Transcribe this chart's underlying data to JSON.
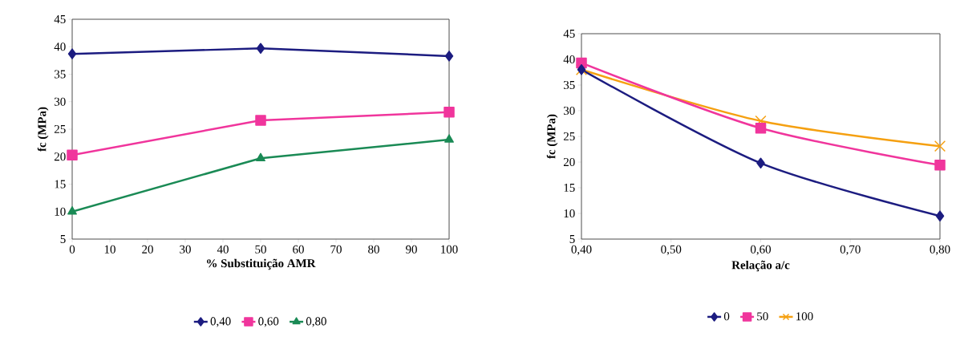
{
  "chart_data": [
    {
      "type": "line",
      "xlabel": "% Substituição AMR",
      "ylabel": "fc (MPa)",
      "x": [
        0,
        50,
        100
      ],
      "xlim": [
        0,
        100
      ],
      "xticks": [
        0,
        10,
        20,
        30,
        40,
        50,
        60,
        70,
        80,
        90,
        100
      ],
      "ylim": [
        5,
        45
      ],
      "yticks": [
        5,
        10,
        15,
        20,
        25,
        30,
        35,
        40,
        45
      ],
      "legend": "bottom",
      "grid": false,
      "series": [
        {
          "name": "0,40",
          "color": "#1c1c80",
          "marker": "diamond",
          "values": [
            38.7,
            39.7,
            38.3
          ]
        },
        {
          "name": "0,60",
          "color": "#f0359c",
          "marker": "square",
          "values": [
            20.3,
            26.6,
            28.1
          ]
        },
        {
          "name": "0,80",
          "color": "#1a8a55",
          "marker": "triangle",
          "values": [
            10,
            19.7,
            23.1
          ]
        }
      ]
    },
    {
      "type": "line",
      "xlabel": "Relação a/c",
      "ylabel": "fc (MPa)",
      "x": [
        0.4,
        0.6,
        0.8
      ],
      "xlim": [
        0.4,
        0.8
      ],
      "xticks": [
        {
          "value": 0.4,
          "label": "0,40"
        },
        {
          "value": 0.5,
          "label": "0,50"
        },
        {
          "value": 0.6,
          "label": "0,60"
        },
        {
          "value": 0.7,
          "label": "0,70"
        },
        {
          "value": 0.8,
          "label": "0,80"
        }
      ],
      "ylim": [
        5,
        45
      ],
      "yticks": [
        5,
        10,
        15,
        20,
        25,
        30,
        35,
        40,
        45
      ],
      "legend": "bottom",
      "grid": false,
      "series": [
        {
          "name": "0",
          "color": "#1c1c80",
          "marker": "diamond",
          "values": [
            38,
            19.8,
            9.5
          ]
        },
        {
          "name": "50",
          "color": "#f0359c",
          "marker": "square",
          "values": [
            39.3,
            26.6,
            19.4
          ]
        },
        {
          "name": "100",
          "color": "#f5a011",
          "marker": "cross",
          "values": [
            38,
            28,
            23.1
          ]
        }
      ]
    }
  ]
}
